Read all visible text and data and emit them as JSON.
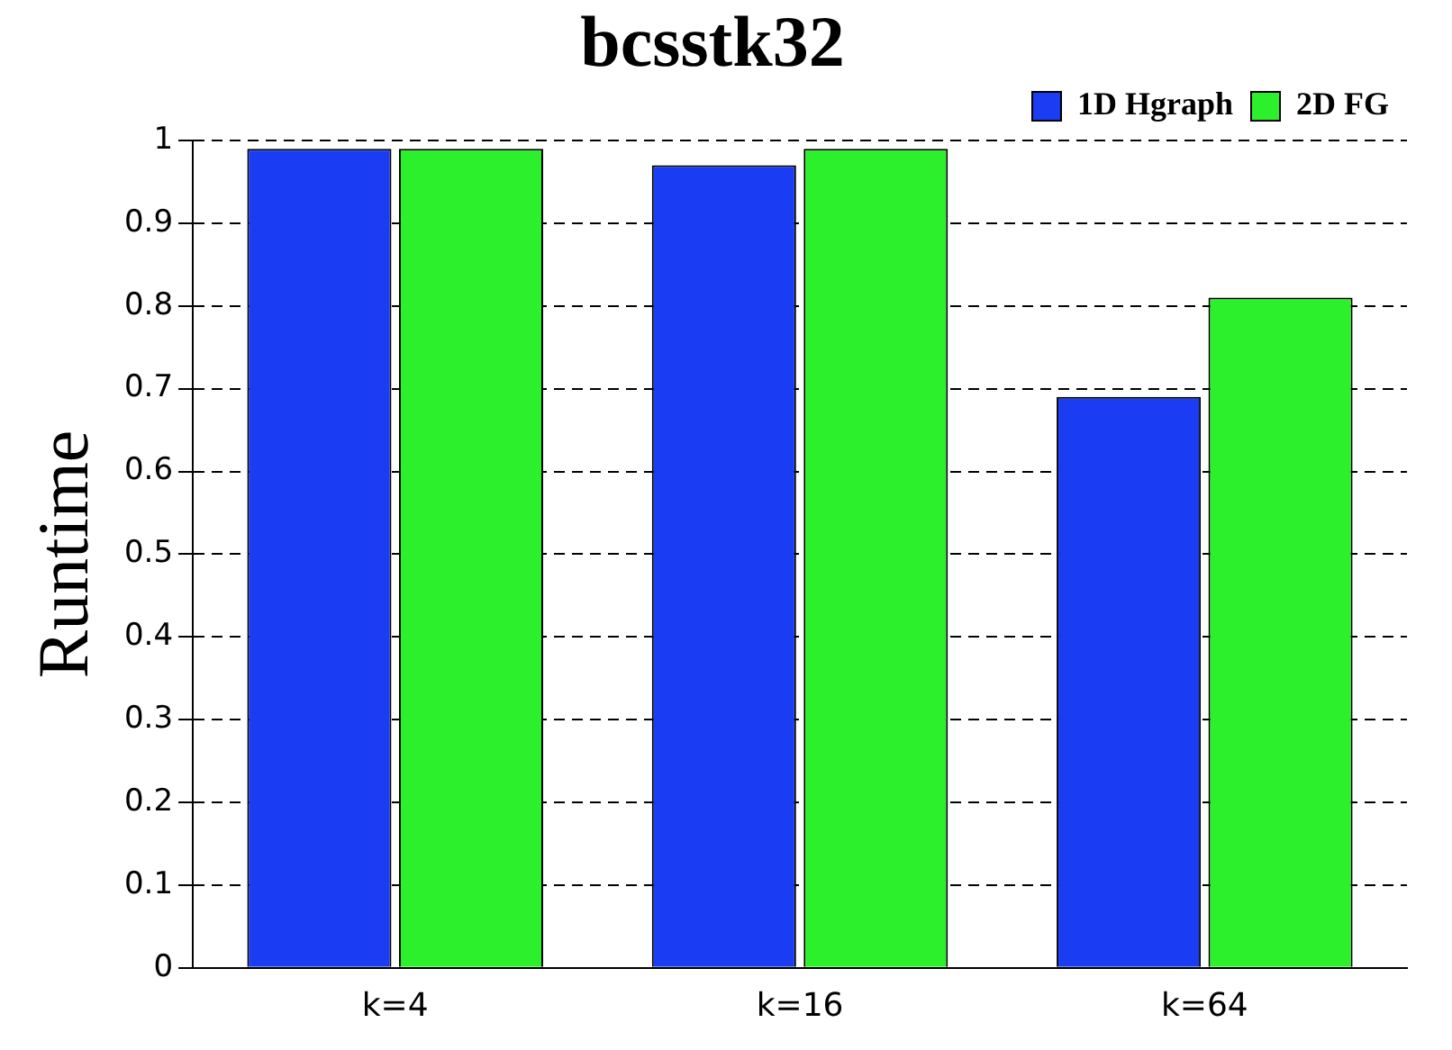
{
  "chart_data": {
    "type": "bar",
    "title": "bcsstk32",
    "ylabel": "Runtime",
    "categories": [
      "k=4",
      "k=16",
      "k=64"
    ],
    "series": [
      {
        "name": "1D Hgraph",
        "color": "#1a3cf2",
        "values": [
          0.99,
          0.97,
          0.69
        ]
      },
      {
        "name": "2D FG",
        "color": "#2cf02c",
        "values": [
          0.99,
          0.99,
          0.81
        ]
      }
    ],
    "ylim": [
      0,
      1
    ],
    "yticks": [
      0,
      0.1,
      0.2,
      0.3,
      0.4,
      0.5,
      0.6,
      0.7,
      0.8,
      0.9,
      1
    ],
    "grid": "y",
    "legend": "top right"
  }
}
